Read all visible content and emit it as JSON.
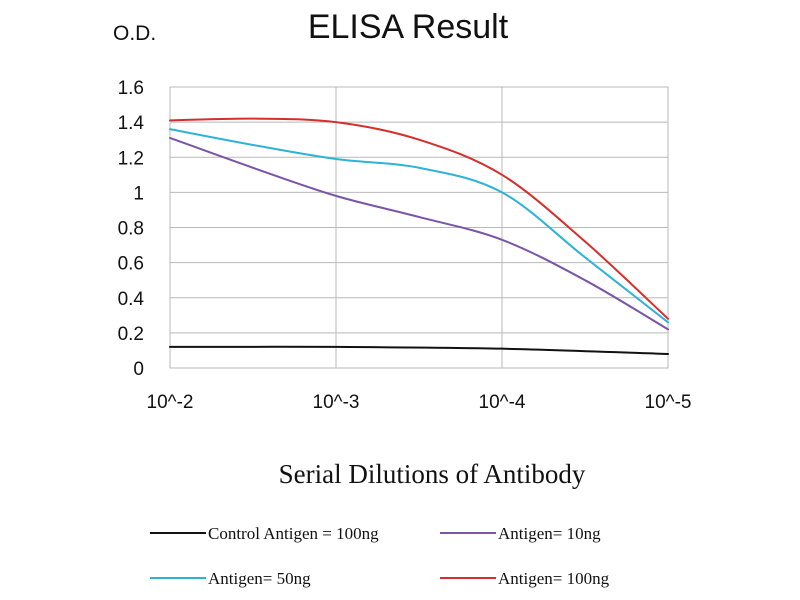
{
  "chart_data": {
    "type": "line",
    "title": "ELISA Result",
    "ylabel": "O.D.",
    "xlabel": "Serial Dilutions of Antibody",
    "categories": [
      "10^-2",
      "10^-3",
      "10^-4",
      "10^-5"
    ],
    "ylim": [
      0,
      1.6
    ],
    "yticks": [
      "0",
      "0.2",
      "0.4",
      "0.6",
      "0.8",
      "1",
      "1.2",
      "1.4",
      "1.6"
    ],
    "grid": true,
    "legend_position": "bottom",
    "series": [
      {
        "name": "Control Antigen = 100ng",
        "color": "#111111",
        "x": [
          0,
          1,
          2,
          3
        ],
        "values": [
          0.12,
          0.12,
          0.11,
          0.08
        ]
      },
      {
        "name": "Antigen= 10ng",
        "color": "#7b55a5",
        "x": [
          0,
          0.5,
          1,
          1.5,
          2,
          2.5,
          3
        ],
        "values": [
          1.31,
          1.14,
          0.98,
          0.86,
          0.73,
          0.5,
          0.22
        ]
      },
      {
        "name": "Antigen= 50ng",
        "color": "#2eb3d6",
        "x": [
          0,
          0.5,
          1,
          1.5,
          2,
          2.5,
          3
        ],
        "values": [
          1.36,
          1.27,
          1.19,
          1.14,
          1.0,
          0.63,
          0.26
        ]
      },
      {
        "name": "Antigen= 100ng",
        "color": "#d4302b",
        "x": [
          0,
          0.5,
          1,
          1.5,
          2,
          2.5,
          3
        ],
        "values": [
          1.41,
          1.42,
          1.4,
          1.3,
          1.1,
          0.72,
          0.28
        ]
      }
    ]
  }
}
